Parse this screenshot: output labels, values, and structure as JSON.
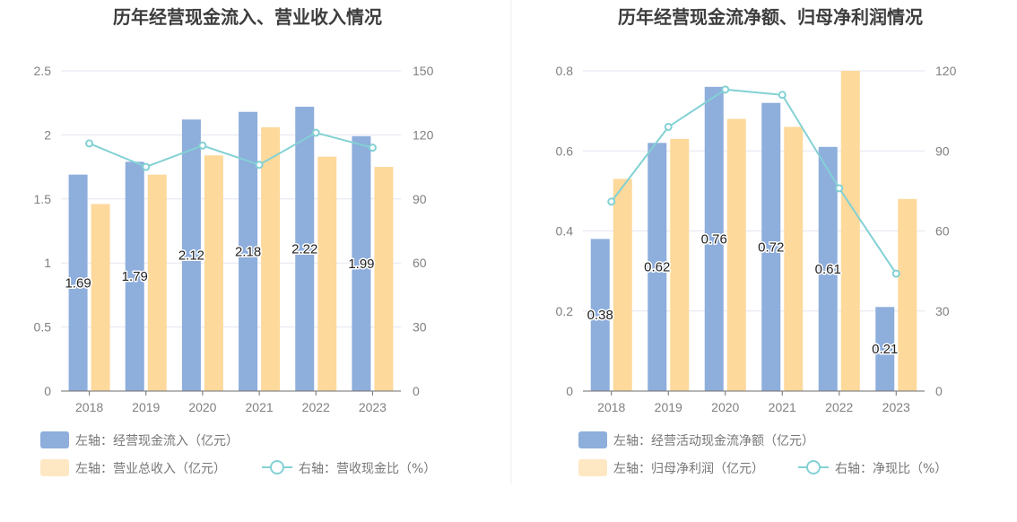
{
  "chart_data": [
    {
      "type": "bar",
      "title": "历年经营现金流入、营业收入情况",
      "categories": [
        "2018",
        "2019",
        "2020",
        "2021",
        "2022",
        "2023"
      ],
      "left_axis": {
        "ylim": [
          0,
          2.5
        ],
        "ticks": [
          "0",
          "0.5",
          "1",
          "1.5",
          "2",
          "2.5"
        ]
      },
      "right_axis": {
        "ylim": [
          0,
          150
        ],
        "ticks": [
          "0",
          "30",
          "60",
          "90",
          "120",
          "150"
        ]
      },
      "series": [
        {
          "name": "左轴：经营现金流入（亿元）",
          "type": "bar",
          "axis": "left",
          "color": "#8eaedc",
          "values": [
            1.69,
            1.79,
            2.12,
            2.18,
            2.22,
            1.99
          ],
          "labels": [
            "1.69",
            "1.79",
            "2.12",
            "2.18",
            "2.22",
            "1.99"
          ]
        },
        {
          "name": "左轴：营业总收入（亿元）",
          "type": "bar",
          "axis": "left",
          "color": "#fdd99c",
          "values": [
            1.46,
            1.69,
            1.84,
            2.06,
            1.83,
            1.75
          ]
        },
        {
          "name": "右轴：营收现金比（%）",
          "type": "line",
          "axis": "right",
          "color": "#83d1d4",
          "values": [
            116,
            105,
            115,
            106,
            121,
            114
          ]
        }
      ],
      "legend": "bottom-left",
      "grid": true
    },
    {
      "type": "bar",
      "title": "历年经营现金流净额、归母净利润情况",
      "categories": [
        "2018",
        "2019",
        "2020",
        "2021",
        "2022",
        "2023"
      ],
      "left_axis": {
        "ylim": [
          0,
          0.8
        ],
        "ticks": [
          "0",
          "0.2",
          "0.4",
          "0.6",
          "0.8"
        ]
      },
      "right_axis": {
        "ylim": [
          0,
          120
        ],
        "ticks": [
          "0",
          "30",
          "60",
          "90",
          "120"
        ]
      },
      "series": [
        {
          "name": "左轴：经营活动现金流净额（亿元）",
          "type": "bar",
          "axis": "left",
          "color": "#8eaedc",
          "values": [
            0.38,
            0.62,
            0.76,
            0.72,
            0.61,
            0.21
          ],
          "labels": [
            "0.38",
            "0.62",
            "0.76",
            "0.72",
            "0.61",
            "0.21"
          ]
        },
        {
          "name": "左轴：归母净利润（亿元）",
          "type": "bar",
          "axis": "left",
          "color": "#fdd99c",
          "values": [
            0.53,
            0.63,
            0.68,
            0.66,
            0.8,
            0.48
          ]
        },
        {
          "name": "右轴：净现比（%）",
          "type": "line",
          "axis": "right",
          "color": "#83d1d4",
          "values": [
            71,
            99,
            113,
            111,
            76,
            44
          ]
        }
      ],
      "legend": "bottom-left",
      "grid": true
    }
  ]
}
